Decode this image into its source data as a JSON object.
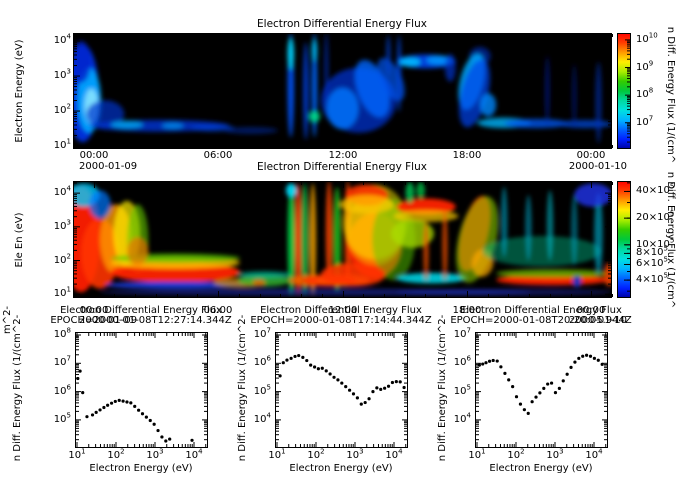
{
  "chart_data": {
    "rainbow": [
      "#ff0000",
      "#ff3c00",
      "#ff9900",
      "#ffee00",
      "#aaee00",
      "#33cc00",
      "#00c83c",
      "#00d9a0",
      "#00e0e0",
      "#00b4ff",
      "#0064ff",
      "#0020ff",
      "#0000a0"
    ],
    "time_axis": {
      "tick_labels": [
        "00:00",
        "06:00",
        "12:00",
        "18:00",
        "00:00"
      ],
      "date_left": "2000-01-09",
      "date_right": "2000-01-10"
    },
    "panels": [
      {
        "type": "heatmap",
        "title": "Electron Differential Energy Flux",
        "ylabel": "Electron Energy (eV)",
        "y_tick_exps": [
          4,
          3,
          2,
          1
        ],
        "colorbar": {
          "label": "n Diff. Energy Flux (1/(cm^",
          "tick_exps": [
            10,
            9,
            8,
            7
          ]
        },
        "features": [
          [
            0.018,
            0.52,
            0.03,
            0.42,
            "#0033ee",
            0.9
          ],
          [
            0.03,
            0.58,
            0.022,
            0.28,
            "#00aaff",
            0.9
          ],
          [
            0.034,
            0.63,
            0.013,
            0.15,
            "#99eeff",
            0.8
          ],
          [
            0.015,
            0.25,
            0.018,
            0.18,
            "#0022cc",
            0.8
          ],
          [
            0.06,
            0.7,
            0.035,
            0.12,
            "#0033cc",
            0.7
          ],
          [
            0.16,
            0.8,
            0.13,
            0.05,
            "#0033cc",
            0.85
          ],
          [
            0.1,
            0.79,
            0.03,
            0.035,
            "#00aaee",
            0.8
          ],
          [
            0.185,
            0.8,
            0.02,
            0.03,
            "#0099ee",
            0.7
          ],
          [
            0.26,
            0.82,
            0.04,
            0.03,
            "#0044dd",
            0.6
          ],
          [
            0.33,
            0.84,
            0.05,
            0.03,
            "#0033bb",
            0.5
          ],
          [
            0.404,
            0.45,
            0.006,
            0.45,
            "#0055ff",
            0.9
          ],
          [
            0.404,
            0.18,
            0.006,
            0.14,
            "#00ddff",
            0.9
          ],
          [
            0.432,
            0.5,
            0.005,
            0.42,
            "#0044ee",
            0.8
          ],
          [
            0.448,
            0.45,
            0.005,
            0.45,
            "#0066ff",
            0.9
          ],
          [
            0.448,
            0.72,
            0.01,
            0.05,
            "#00dd88",
            0.9
          ],
          [
            0.448,
            0.15,
            0.005,
            0.1,
            "#00ccff",
            0.8
          ],
          [
            0.47,
            0.3,
            0.004,
            0.3,
            "#0033cc",
            0.6
          ],
          [
            0.53,
            0.58,
            0.07,
            0.28,
            "#0030cc",
            0.75
          ],
          [
            0.5,
            0.65,
            0.03,
            0.18,
            "#0077ff",
            0.8
          ],
          [
            0.555,
            0.48,
            0.028,
            0.26,
            "#0066ff",
            0.8,
            -20
          ],
          [
            0.59,
            0.4,
            0.02,
            0.2,
            "#0055ee",
            0.7,
            -25
          ],
          [
            0.585,
            0.2,
            0.004,
            0.18,
            "#0044dd",
            0.7
          ],
          [
            0.605,
            0.35,
            0.004,
            0.33,
            "#0044dd",
            0.8
          ],
          [
            0.655,
            0.245,
            0.055,
            0.06,
            "#0044ee",
            0.9
          ],
          [
            0.625,
            0.25,
            0.02,
            0.04,
            "#00bbff",
            0.9
          ],
          [
            0.68,
            0.235,
            0.025,
            0.04,
            "#0099ff",
            0.85
          ],
          [
            0.7,
            0.3,
            0.01,
            0.12,
            "#0033cc",
            0.7
          ],
          [
            0.755,
            0.2,
            0.02,
            0.08,
            "#0033cc",
            0.6
          ],
          [
            0.74,
            0.42,
            0.022,
            0.25,
            "#00aaff",
            0.85,
            14
          ],
          [
            0.745,
            0.52,
            0.025,
            0.3,
            "#0044ee",
            0.7,
            14
          ],
          [
            0.77,
            0.62,
            0.015,
            0.1,
            "#0088ff",
            0.8
          ],
          [
            0.8,
            0.775,
            0.05,
            0.045,
            "#00aaee",
            0.85
          ],
          [
            0.86,
            0.78,
            0.06,
            0.04,
            "#0055ee",
            0.8
          ],
          [
            0.95,
            0.785,
            0.05,
            0.035,
            "#0044cc",
            0.8
          ],
          [
            0.88,
            0.5,
            0.004,
            0.3,
            "#0022aa",
            0.6
          ],
          [
            0.93,
            0.55,
            0.004,
            0.28,
            "#0022aa",
            0.5
          ],
          [
            0.975,
            0.6,
            0.006,
            0.35,
            "#0033bb",
            0.6
          ]
        ]
      },
      {
        "type": "heatmap",
        "title": "Electron Differential Energy Flux",
        "ylabel": "Ele En (eV)",
        "y_tick_exps": [
          4,
          3,
          2,
          1
        ],
        "left_fragment": "m^2-",
        "colorbar": {
          "label": "n Diff. Energy Flux (1/(cm^",
          "ticks": [
            {
              "m": "40",
              "e": "5"
            },
            {
              "m": "20",
              "e": "5"
            },
            {
              "m": "10",
              "e": "5"
            },
            {
              "m": "8",
              "e": "5"
            },
            {
              "m": "6",
              "e": "5"
            },
            {
              "m": "4",
              "e": "5"
            }
          ]
        },
        "features": [
          [
            0.015,
            0.5,
            0.035,
            0.45,
            "#ff1a00",
            0.95
          ],
          [
            0.05,
            0.62,
            0.035,
            0.3,
            "#ff3300",
            0.9
          ],
          [
            0.08,
            0.5,
            0.03,
            0.3,
            "#ff9900",
            0.8
          ],
          [
            0.1,
            0.45,
            0.025,
            0.28,
            "#ffee00",
            0.7
          ],
          [
            0.12,
            0.5,
            0.02,
            0.3,
            "#66cc00",
            0.6
          ],
          [
            0.02,
            0.12,
            0.03,
            0.1,
            "#00ccff",
            0.8
          ],
          [
            0.05,
            0.2,
            0.02,
            0.12,
            "#0077ff",
            0.7
          ],
          [
            0.19,
            0.78,
            0.12,
            0.09,
            "#ff2200",
            0.95
          ],
          [
            0.19,
            0.7,
            0.12,
            0.05,
            "#ffcc00",
            0.8
          ],
          [
            0.19,
            0.66,
            0.12,
            0.04,
            "#55cc00",
            0.7
          ],
          [
            0.19,
            0.89,
            0.13,
            0.03,
            "#2244ff",
            0.8
          ],
          [
            0.12,
            0.6,
            0.02,
            0.12,
            "#ff6600",
            0.6
          ],
          [
            0.31,
            0.87,
            0.05,
            0.04,
            "#ffaa00",
            0.6
          ],
          [
            0.355,
            0.85,
            0.05,
            0.05,
            "#33bb33",
            0.8
          ],
          [
            0.355,
            0.8,
            0.05,
            0.03,
            "#00ccaa",
            0.6
          ],
          [
            0.345,
            0.87,
            0.012,
            0.03,
            "#ff5500",
            0.7
          ],
          [
            0.405,
            0.5,
            0.007,
            0.48,
            "#00cc44",
            0.9
          ],
          [
            0.418,
            0.5,
            0.006,
            0.48,
            "#ff3300",
            0.9
          ],
          [
            0.43,
            0.5,
            0.007,
            0.48,
            "#00bb44",
            0.85
          ],
          [
            0.445,
            0.5,
            0.006,
            0.48,
            "#ffaa00",
            0.8
          ],
          [
            0.405,
            0.08,
            0.01,
            0.06,
            "#00ddff",
            0.9
          ],
          [
            0.44,
            0.85,
            0.04,
            0.05,
            "#ff6600",
            0.8
          ],
          [
            0.475,
            0.45,
            0.006,
            0.45,
            "#ff4400",
            0.85
          ],
          [
            0.49,
            0.5,
            0.007,
            0.45,
            "#22cc22",
            0.8
          ],
          [
            0.51,
            0.45,
            0.006,
            0.45,
            "#ff4400",
            0.85
          ],
          [
            0.5,
            0.85,
            0.05,
            0.05,
            "#ffcc00",
            0.8
          ],
          [
            0.475,
            0.85,
            0.05,
            0.05,
            "#ff3300",
            0.85
          ],
          [
            0.56,
            0.55,
            0.05,
            0.28,
            "#ff2200",
            0.95
          ],
          [
            0.56,
            0.42,
            0.055,
            0.3,
            "#ff9900",
            0.7
          ],
          [
            0.56,
            0.35,
            0.06,
            0.32,
            "#ffee00",
            0.5
          ],
          [
            0.595,
            0.5,
            0.04,
            0.35,
            "#55cc00",
            0.5
          ],
          [
            0.545,
            0.12,
            0.04,
            0.09,
            "#ff3300",
            0.9
          ],
          [
            0.545,
            0.2,
            0.05,
            0.08,
            "#ffcc00",
            0.7
          ],
          [
            0.52,
            0.8,
            0.06,
            0.1,
            "#ff3300",
            0.9
          ],
          [
            0.655,
            0.22,
            0.055,
            0.07,
            "#ff2200",
            0.95
          ],
          [
            0.655,
            0.3,
            0.06,
            0.05,
            "#ffcc00",
            0.7
          ],
          [
            0.625,
            0.1,
            0.008,
            0.09,
            "#00cc55",
            0.8
          ],
          [
            0.645,
            0.08,
            0.008,
            0.07,
            "#00bb44",
            0.8
          ],
          [
            0.63,
            0.45,
            0.04,
            0.12,
            "#aadd00",
            0.75
          ],
          [
            0.665,
            0.83,
            0.065,
            0.045,
            "#00ddee",
            0.85
          ],
          [
            0.655,
            0.6,
            0.005,
            0.25,
            "#ff5500",
            0.7
          ],
          [
            0.69,
            0.55,
            0.005,
            0.3,
            "#ff5500",
            0.7
          ],
          [
            0.745,
            0.45,
            0.025,
            0.33,
            "#ff2200",
            0.92,
            14
          ],
          [
            0.75,
            0.5,
            0.035,
            0.38,
            "#88cc00",
            0.6,
            14
          ],
          [
            0.76,
            0.7,
            0.02,
            0.12,
            "#ffaa00",
            0.7,
            10
          ],
          [
            0.89,
            0.845,
            0.105,
            0.045,
            "#ff2200",
            0.95
          ],
          [
            0.89,
            0.79,
            0.105,
            0.035,
            "#77cc00",
            0.7
          ],
          [
            0.87,
            0.6,
            0.11,
            0.13,
            "#00bb88",
            0.45
          ],
          [
            0.8,
            0.35,
            0.006,
            0.3,
            "#00aacc",
            0.6
          ],
          [
            0.845,
            0.4,
            0.006,
            0.28,
            "#00aacc",
            0.55
          ],
          [
            0.885,
            0.38,
            0.006,
            0.3,
            "#00bbcc",
            0.6
          ],
          [
            0.93,
            0.42,
            0.006,
            0.3,
            "#00aacc",
            0.5
          ],
          [
            0.975,
            0.45,
            0.008,
            0.35,
            "#00bbdd",
            0.6
          ],
          [
            0.965,
            0.12,
            0.035,
            0.1,
            "#2233ee",
            0.8
          ],
          [
            0.935,
            0.86,
            0.008,
            0.05,
            "#0033cc",
            0.9
          ],
          [
            0.995,
            0.8,
            0.01,
            0.1,
            "#ff4400",
            0.8
          ],
          [
            0.45,
            0.95,
            0.4,
            0.03,
            "#2233cc",
            0.5
          ],
          [
            0.8,
            0.95,
            0.2,
            0.03,
            "#2233cc",
            0.4
          ]
        ]
      }
    ],
    "scatter_plots": [
      {
        "type": "scatter",
        "title": "Electron Differential Energy Flux",
        "subtitle": "EPOCH=2000-01-08T12:27:14.344Z",
        "xlabel": "Electron Energy (eV)",
        "ylabel": "n Diff. Energy Flux (1/(cm^2-",
        "x_tick_exps": [
          1,
          2,
          3,
          4
        ],
        "y_tick_exps": [
          8,
          7,
          6,
          5
        ],
        "E": [
          10.5,
          12,
          14,
          18,
          25,
          31,
          39,
          49,
          61,
          77,
          96,
          121,
          152,
          191,
          240,
          302,
          380,
          478,
          601,
          756,
          951,
          1196,
          1505,
          1893,
          2381,
          8900
        ],
        "F": [
          2900000,
          5300000,
          920000,
          130000,
          150000,
          185000,
          225000,
          275000,
          330000,
          390000,
          450000,
          490000,
          460000,
          430000,
          400000,
          300000,
          220000,
          165000,
          125000,
          95000,
          70000,
          42000,
          25000,
          18000,
          21000,
          19000
        ]
      },
      {
        "type": "scatter",
        "title": "Electron Differential Energy Flux",
        "subtitle": "EPOCH=2000-01-08T17:14:44.344Z",
        "xlabel": "Electron Energy (eV)",
        "ylabel": "n Diff. Energy Flux (1/(cm^2-",
        "x_tick_exps": [
          1,
          2,
          3,
          4
        ],
        "y_tick_exps": [
          7,
          6,
          5,
          4
        ],
        "E": [
          12,
          14.5,
          18,
          23,
          29,
          36,
          46,
          58,
          73,
          92,
          115,
          145,
          183,
          230,
          290,
          365,
          459,
          578,
          727,
          915,
          1151,
          1449,
          1823,
          2294,
          2887,
          3633,
          4572,
          5753,
          7240,
          9111,
          11465,
          14428,
          18157
        ],
        "F": [
          360000,
          1050000,
          1300000,
          1500000,
          1750000,
          1880000,
          1620000,
          1250000,
          860000,
          740000,
          640000,
          670000,
          540000,
          420000,
          320000,
          260000,
          200000,
          150000,
          112000,
          83000,
          60000,
          36000,
          41000,
          56000,
          100000,
          135000,
          120000,
          132000,
          155000,
          210000,
          225000,
          220000,
          140000
        ]
      },
      {
        "type": "scatter",
        "title": "Electron Differential Energy Flux",
        "subtitle": "EPOCH=2000-01-08T20:20:05.944Z",
        "xlabel": "Electron Energy (eV)",
        "ylabel": "n Diff. Energy Flux (1/(cm^2-",
        "x_tick_exps": [
          1,
          2,
          3,
          4
        ],
        "y_tick_exps": [
          7,
          6,
          5,
          4
        ],
        "E": [
          11.5,
          14,
          17,
          21,
          26,
          33,
          41,
          52,
          65,
          82,
          103,
          130,
          164,
          206,
          259,
          326,
          410,
          516,
          649,
          817,
          1028,
          1294,
          1628,
          2049,
          2578,
          3244,
          4082,
          5137,
          6464,
          8134,
          10235,
          12879,
          16206
        ],
        "F": [
          860000,
          940000,
          1050000,
          1180000,
          1260000,
          1200000,
          750000,
          440000,
          260000,
          150000,
          66000,
          36000,
          23000,
          17000,
          44000,
          64000,
          90000,
          130000,
          185000,
          200000,
          92000,
          130000,
          240000,
          410000,
          720000,
          1100000,
          1500000,
          1780000,
          1920000,
          1780000,
          1500000,
          1280000,
          920000
        ]
      }
    ]
  }
}
